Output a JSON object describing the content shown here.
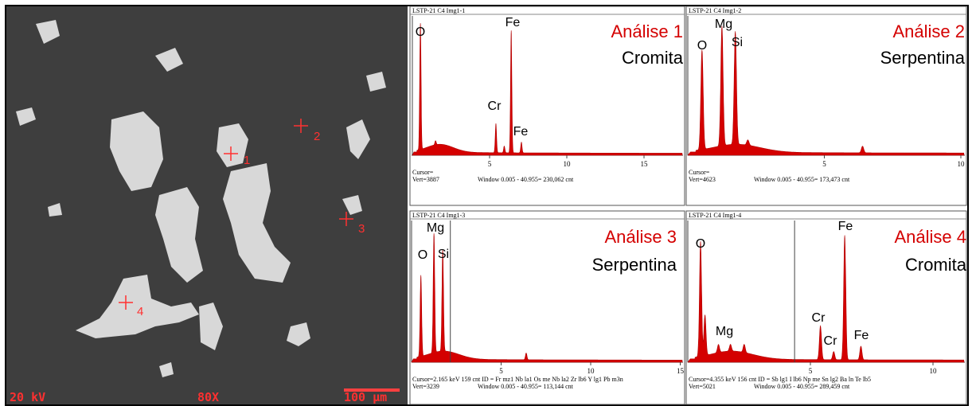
{
  "sem_image": {
    "markers": [
      "1",
      "2",
      "3",
      "4"
    ],
    "footer": [
      "20 kV",
      "80X",
      "100 µm"
    ]
  },
  "spectra": [
    {
      "header": "LSTP-21 C4 Img1-1",
      "analysis": "Análise 1",
      "mineral": "Cromita",
      "peak_labels": [
        "O",
        "Fe",
        "Cr",
        "Fe"
      ],
      "ticks": [
        "5",
        "10",
        "15"
      ],
      "cursor": "Cursor=",
      "vert": "Vert=3887",
      "window": "Window 0.005 - 40.955= 230,062 cnt"
    },
    {
      "header": "LSTP-21 C4 Img1-2",
      "analysis": "Análise 2",
      "mineral": "Serpentina",
      "peak_labels": [
        "O",
        "Mg",
        "Si"
      ],
      "ticks": [
        "5",
        "10"
      ],
      "cursor": "Cursor=",
      "vert": "Vert=4623",
      "window": "Window 0.005 - 40.955= 173,473 cnt"
    },
    {
      "header": "LSTP-21 C4 Img1-3",
      "analysis": "Análise 3",
      "mineral": "Serpentina",
      "peak_labels": [
        "Mg",
        "O",
        "Si"
      ],
      "ticks": [
        "5",
        "10",
        "15"
      ],
      "cursor": "Cursor=2.165 keV   159 cnt  ID = Fr mz1  Nb la1  Os me  Nb la2  Zr lb6  Y lg1  Pb m3n",
      "vert": "Vert=3239",
      "window": "Window 0.005 - 40.955= 113,144 cnt"
    },
    {
      "header": "LSTP-21 C4 Img1-4",
      "analysis": "Análise 4",
      "mineral": "Cromita",
      "peak_labels": [
        "O",
        "Fe",
        "Mg",
        "Cr",
        "Cr",
        "Fe"
      ],
      "ticks": [
        "5",
        "10"
      ],
      "cursor": "Cursor=4.355 keV   156 cnt  ID = Sb lg1  I lb6  Np me  Sn lg2  Ba ln  Te lb5",
      "vert": "Vert=5021",
      "window": "Window 0.005 - 40.955= 289,459 cnt"
    }
  ]
}
